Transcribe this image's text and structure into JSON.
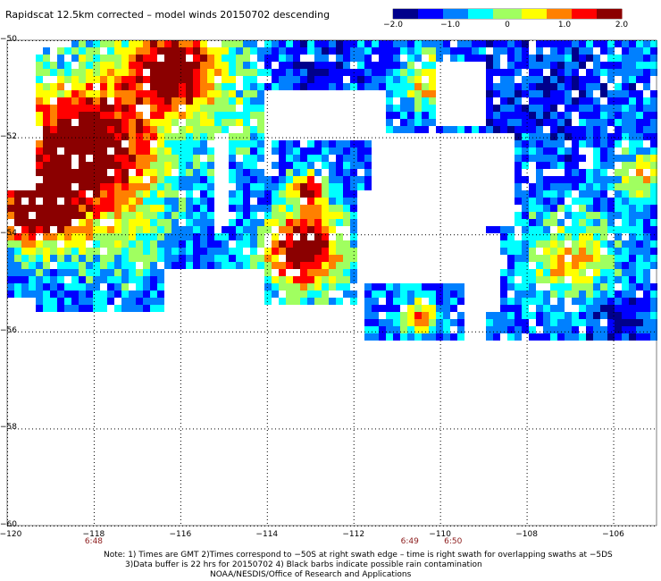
{
  "title": "Rapidscat 12.5km corrected – model winds 20150702 descending",
  "colorbar": {
    "labels": [
      "−2.0",
      "−1.0",
      "0",
      "1.0",
      "2.0"
    ],
    "values": [
      -2.0,
      -1.0,
      0,
      1.0,
      2.0
    ],
    "range": [
      -2.0,
      2.0
    ],
    "colors": [
      "#00008b",
      "#0000ff",
      "#0080ff",
      "#00ffff",
      "#a0ff60",
      "#ffff00",
      "#ff8000",
      "#ff0000",
      "#8b0000"
    ]
  },
  "axes": {
    "x_ticks": [
      "−120",
      "−118",
      "−116",
      "−114",
      "−112",
      "−110",
      "−108",
      "−106"
    ],
    "x_values": [
      -120,
      -118,
      -116,
      -114,
      -112,
      -110,
      -108,
      -106
    ],
    "y_ticks": [
      "−50",
      "−52",
      "−54",
      "−56",
      "−58",
      "−60"
    ],
    "y_values": [
      -50,
      -52,
      -54,
      -56,
      -58,
      -60
    ],
    "lon_range": [
      -120,
      -105
    ],
    "lat_range": [
      -60,
      -50
    ]
  },
  "swath_times": [
    {
      "label": "6:48",
      "lon": -118
    },
    {
      "label": "6:49",
      "lon": -110.7
    },
    {
      "label": "6:50",
      "lon": -109.7
    }
  ],
  "notes": [
    "Note: 1) Times are GMT 2)Times correspond to −50S at right swath edge – time is right swath for overlapping swaths at −5DS",
    "3)Data buffer is 22 hrs for 20150702 4) Black barbs indicate possible rain contamination",
    "NOAA/NESDIS/Office of Research and Applications"
  ]
}
